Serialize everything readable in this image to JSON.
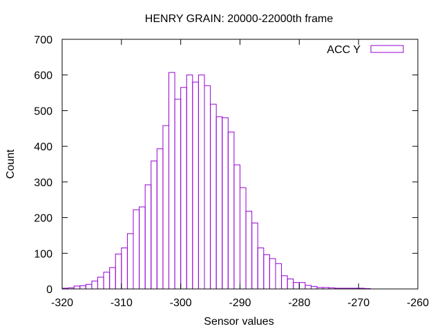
{
  "chart_data": {
    "type": "bar",
    "title": "HENRY GRAIN: 20000-22000th frame",
    "xlabel": "Sensor values",
    "ylabel": "Count",
    "xlim": [
      -320,
      -260
    ],
    "ylim": [
      0,
      700
    ],
    "xticks": [
      -320,
      -310,
      -300,
      -290,
      -280,
      -270,
      -260
    ],
    "yticks": [
      0,
      100,
      200,
      300,
      400,
      500,
      600,
      700
    ],
    "bin_width": 1,
    "legend_position": "top-right",
    "grid": false,
    "series": [
      {
        "name": "ACC Y",
        "color": "#9400d3",
        "bins": [
          [
            -319.5,
            2
          ],
          [
            -318.5,
            3
          ],
          [
            -317.5,
            8
          ],
          [
            -316.5,
            9
          ],
          [
            -315.5,
            13
          ],
          [
            -314.5,
            22
          ],
          [
            -313.5,
            33
          ],
          [
            -312.5,
            47
          ],
          [
            -311.5,
            60
          ],
          [
            -310.5,
            98
          ],
          [
            -309.5,
            115
          ],
          [
            -308.5,
            155
          ],
          [
            -307.5,
            222
          ],
          [
            -306.5,
            230
          ],
          [
            -305.5,
            292
          ],
          [
            -304.5,
            359
          ],
          [
            -303.5,
            393
          ],
          [
            -302.5,
            458
          ],
          [
            -301.5,
            607
          ],
          [
            -300.5,
            532
          ],
          [
            -299.5,
            565
          ],
          [
            -298.5,
            600
          ],
          [
            -297.5,
            580
          ],
          [
            -296.5,
            600
          ],
          [
            -295.5,
            570
          ],
          [
            -294.5,
            518
          ],
          [
            -293.5,
            483
          ],
          [
            -292.5,
            480
          ],
          [
            -291.5,
            440
          ],
          [
            -290.5,
            348
          ],
          [
            -289.5,
            284
          ],
          [
            -288.5,
            218
          ],
          [
            -287.5,
            185
          ],
          [
            -286.5,
            115
          ],
          [
            -285.5,
            96
          ],
          [
            -284.5,
            85
          ],
          [
            -283.5,
            71
          ],
          [
            -282.5,
            37
          ],
          [
            -281.5,
            28
          ],
          [
            -280.5,
            18
          ],
          [
            -279.5,
            18
          ],
          [
            -278.5,
            10
          ],
          [
            -277.5,
            7
          ],
          [
            -276.5,
            4
          ],
          [
            -275.5,
            4
          ],
          [
            -274.5,
            3
          ],
          [
            -273.5,
            2
          ],
          [
            -272.5,
            2
          ],
          [
            -271.5,
            2
          ],
          [
            -270.5,
            2
          ],
          [
            -269.5,
            2
          ],
          [
            -268.5,
            1
          ]
        ]
      }
    ]
  }
}
